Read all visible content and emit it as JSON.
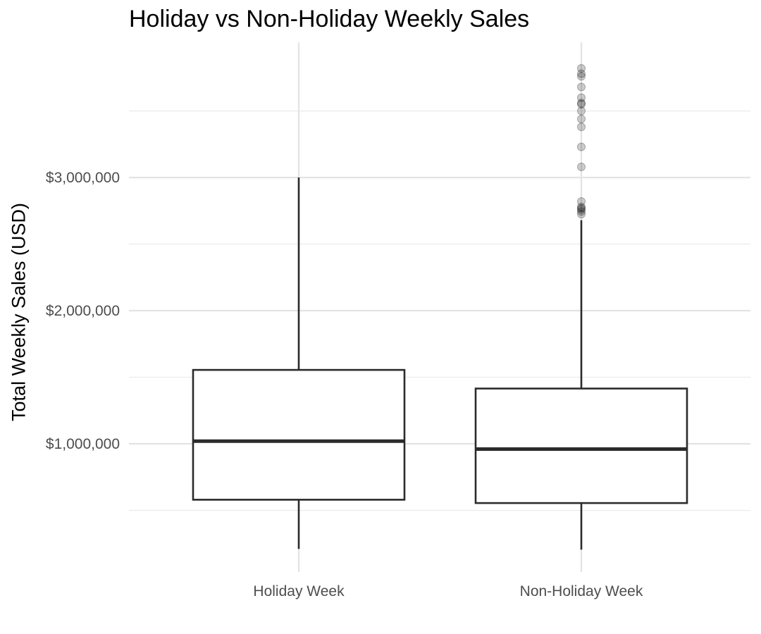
{
  "chart_data": {
    "type": "box",
    "title": "Holiday vs Non-Holiday Weekly Sales",
    "xlabel": "",
    "ylabel": "Total Weekly Sales (USD)",
    "categories": [
      "Holiday Week",
      "Non-Holiday Week"
    ],
    "ylim": [
      210000,
      3980000
    ],
    "y_ticks": [
      1000000,
      2000000,
      3000000
    ],
    "y_tick_labels": [
      "$1,000,000",
      "$2,000,000",
      "$3,000,000"
    ],
    "grid": true,
    "boxes": [
      {
        "category": "Holiday Week",
        "whisker_low": 210000,
        "q1": 580000,
        "median": 1020000,
        "q3": 1555000,
        "whisker_high": 3000000,
        "outliers": []
      },
      {
        "category": "Non-Holiday Week",
        "whisker_low": 205000,
        "q1": 555000,
        "median": 960000,
        "q3": 1415000,
        "whisker_high": 2680000,
        "outliers": [
          2725000,
          2745000,
          2760000,
          2770000,
          2780000,
          2820000,
          3080000,
          3230000,
          3380000,
          3440000,
          3500000,
          3550000,
          3560000,
          3600000,
          3680000,
          3760000,
          3780000,
          3820000
        ]
      }
    ]
  }
}
